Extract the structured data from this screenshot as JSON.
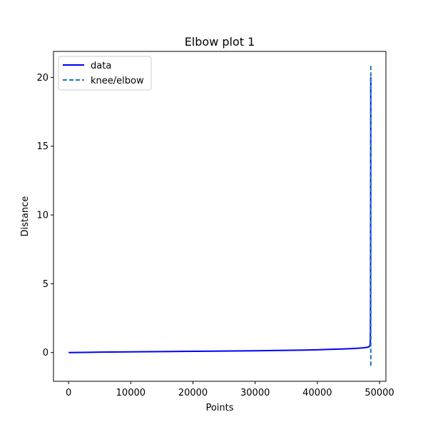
{
  "chart_data": {
    "type": "line",
    "title": "Elbow plot 1",
    "xlabel": "Points",
    "ylabel": "Distance",
    "xlim": [
      -2430,
      51030
    ],
    "ylim": [
      -2.09,
      21.89
    ],
    "xticks": [
      0,
      10000,
      20000,
      30000,
      40000,
      50000
    ],
    "yticks": [
      0,
      5,
      10,
      15,
      20
    ],
    "legend_position": "upper-left",
    "grid": false,
    "series": [
      {
        "name": "data",
        "style": "solid",
        "color": "#0000ff",
        "x": [
          0,
          5000,
          10000,
          15000,
          20000,
          25000,
          30000,
          35000,
          38000,
          40000,
          42000,
          44000,
          45000,
          46000,
          47000,
          47500,
          48000,
          48200,
          48300,
          48400,
          48450,
          48500,
          48520,
          48540,
          48560,
          48580,
          48600
        ],
        "y": [
          0.0,
          0.03,
          0.05,
          0.07,
          0.09,
          0.11,
          0.13,
          0.16,
          0.18,
          0.2,
          0.23,
          0.26,
          0.28,
          0.3,
          0.33,
          0.35,
          0.38,
          0.4,
          0.42,
          0.46,
          0.5,
          0.6,
          0.9,
          1.6,
          4.0,
          12.0,
          20.0
        ]
      },
      {
        "name": "knee/elbow",
        "style": "dashed",
        "color": "#1f77b4",
        "x": [
          48600,
          48600
        ],
        "y": [
          -0.96,
          20.96
        ]
      }
    ]
  }
}
